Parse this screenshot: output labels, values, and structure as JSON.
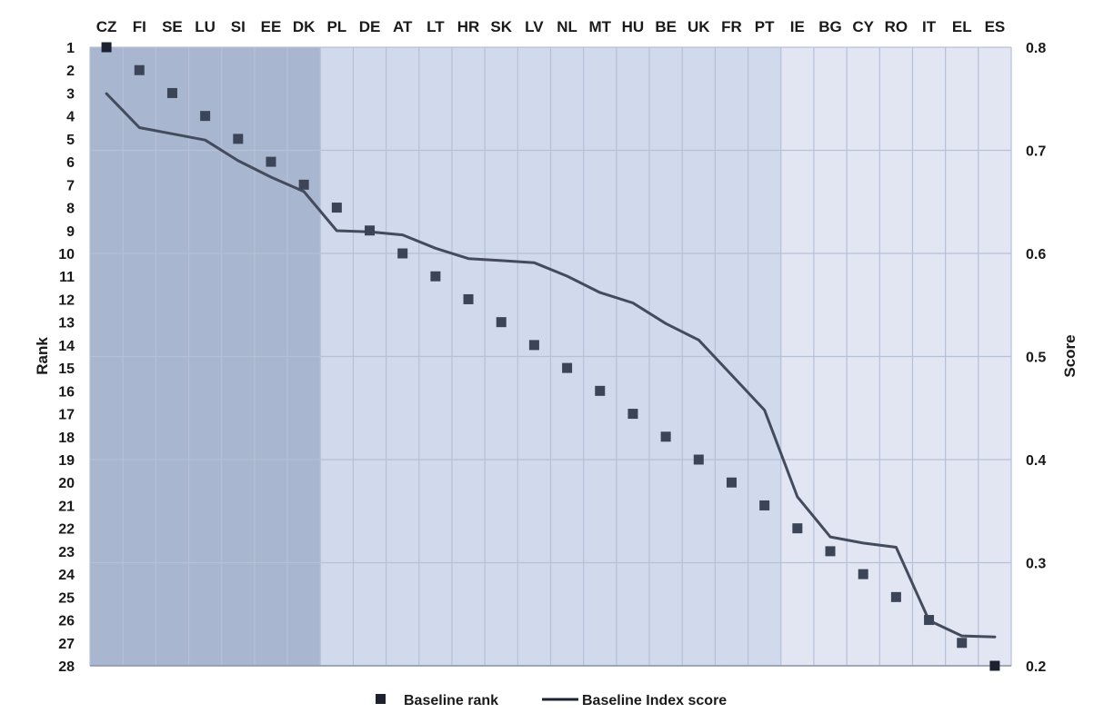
{
  "chart_data": {
    "type": "line",
    "categories": [
      "CZ",
      "FI",
      "SE",
      "LU",
      "SI",
      "EE",
      "DK",
      "PL",
      "DE",
      "AT",
      "LT",
      "HR",
      "SK",
      "LV",
      "NL",
      "MT",
      "HU",
      "BE",
      "UK",
      "FR",
      "PT",
      "IE",
      "BG",
      "CY",
      "RO",
      "IT",
      "EL",
      "ES"
    ],
    "series": [
      {
        "name": "Baseline rank",
        "kind": "scatter",
        "axis": "left",
        "values": [
          1,
          2,
          3,
          4,
          5,
          6,
          7,
          8,
          9,
          10,
          11,
          12,
          13,
          14,
          15,
          16,
          17,
          18,
          19,
          20,
          21,
          22,
          23,
          24,
          25,
          26,
          27,
          28
        ]
      },
      {
        "name": "Baseline Index score",
        "kind": "line",
        "axis": "right",
        "values": [
          0.755,
          0.722,
          0.716,
          0.71,
          0.69,
          0.674,
          0.66,
          0.622,
          0.621,
          0.618,
          0.605,
          0.595,
          0.593,
          0.591,
          0.578,
          0.562,
          0.552,
          0.532,
          0.516,
          0.482,
          0.448,
          0.364,
          0.325,
          0.319,
          0.315,
          0.244,
          0.229,
          0.228
        ]
      }
    ],
    "y_left": {
      "label": "Rank",
      "ticks": [
        1,
        2,
        3,
        4,
        5,
        6,
        7,
        8,
        9,
        10,
        11,
        12,
        13,
        14,
        15,
        16,
        17,
        18,
        19,
        20,
        21,
        22,
        23,
        24,
        25,
        26,
        27,
        28
      ],
      "range": [
        1,
        28
      ],
      "inverted": true
    },
    "y_right": {
      "label": "Score",
      "ticks": [
        "0.2",
        "0.3",
        "0.4",
        "0.5",
        "0.6",
        "0.7",
        "0.8"
      ],
      "range": [
        0.2,
        0.8
      ]
    },
    "bands": [
      {
        "from_index": 0,
        "to_index": 6,
        "color": "#a9b6d0"
      },
      {
        "from_index": 7,
        "to_index": 20,
        "color": "#d1daec"
      },
      {
        "from_index": 21,
        "to_index": 27,
        "color": "#e1e6f2"
      }
    ],
    "grid": true,
    "legend": {
      "position": "bottom",
      "items": [
        "Baseline rank",
        "Baseline Index score"
      ]
    },
    "colors": {
      "marker": "#3b4557",
      "marker_dark": "#1c2230",
      "line": "#434b5c",
      "grid": "#b6c0d6"
    }
  }
}
